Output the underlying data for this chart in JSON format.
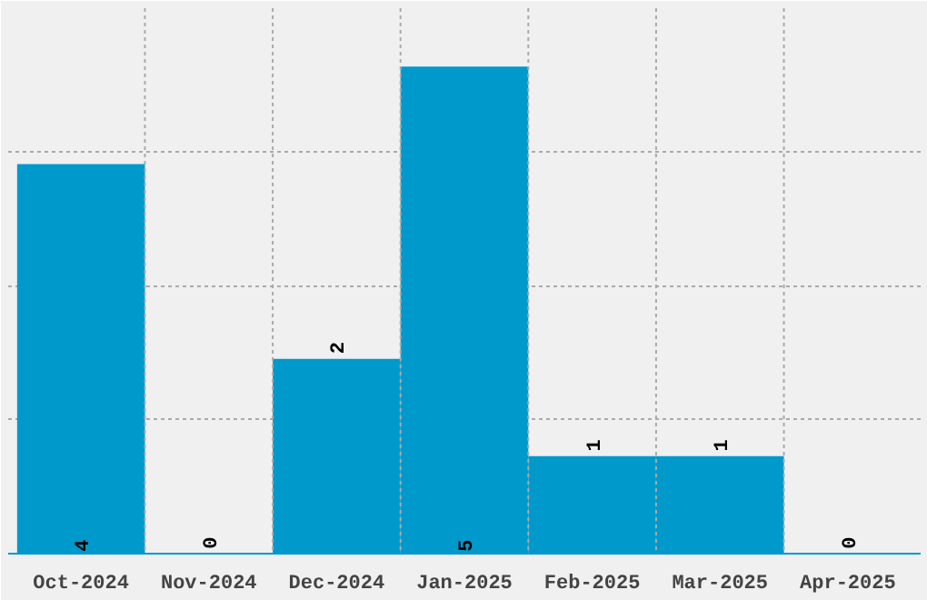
{
  "chart_data": {
    "type": "bar",
    "categories": [
      "Oct-2024",
      "Nov-2024",
      "Dec-2024",
      "Jan-2025",
      "Feb-2025",
      "Mar-2025",
      "Apr-2025"
    ],
    "values": [
      4,
      0,
      2,
      5,
      1,
      1,
      0
    ],
    "color": "#0099cc",
    "data_labels": true,
    "grid": true,
    "tick_labels": "x",
    "ylim": [
      0,
      5.6
    ],
    "yticks": [
      {
        "value": 1.38,
        "label": null
      },
      {
        "value": 2.75,
        "label": null
      },
      {
        "value": 4.13,
        "label": null
      }
    ]
  }
}
